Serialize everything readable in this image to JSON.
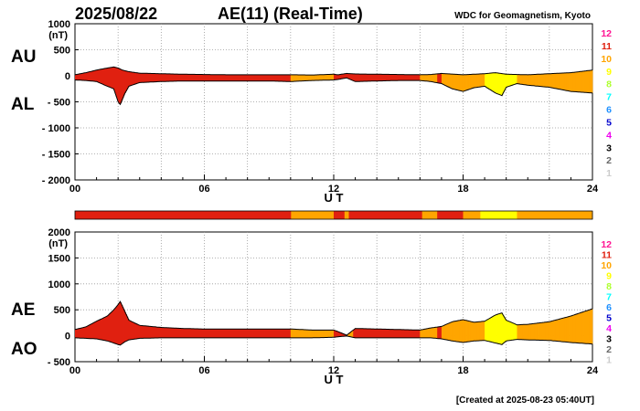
{
  "header": {
    "date": "2025/08/22",
    "title": "AE(11) (Real-Time)",
    "source": "WDC for Geomagnetism, Kyoto"
  },
  "footer": {
    "created": "[Created at 2025-08-23 05:40UT]"
  },
  "level_colors": {
    "12": "#ff1493",
    "11": "#e02010",
    "10": "#ffa500",
    "9": "#ffff00",
    "8": "#adff2f",
    "7": "#00ffff",
    "6": "#1e90ff",
    "5": "#0000cd",
    "4": "#ee00ee",
    "3": "#000000",
    "2": "#666666",
    "1": "#cccccc"
  },
  "chart_data": [
    {
      "type": "area",
      "panel": "AU/AL",
      "upper_label": "AU",
      "lower_label": "AL",
      "xlabel": "U T",
      "ylabel_unit": "(nT)",
      "xlim": [
        0,
        24
      ],
      "ylim": [
        -2000,
        1000
      ],
      "xticks": [
        "00",
        "06",
        "12",
        "18",
        "24"
      ],
      "yticks": [
        "1000",
        "500",
        "0",
        "- 500",
        "- 1000",
        "- 1500",
        "- 2000"
      ],
      "grid": true,
      "legend": "right",
      "legend_levels": [
        "12",
        "11",
        "10",
        "9",
        "8",
        "7",
        "6",
        "5",
        "4",
        "3",
        "2",
        "1"
      ],
      "series": [
        {
          "name": "AU",
          "x": [
            0,
            0.5,
            1,
            1.5,
            1.8,
            2,
            2.2,
            2.5,
            3,
            4,
            5,
            6,
            7,
            8,
            9,
            10,
            11,
            12,
            12.2,
            12.6,
            13,
            14,
            15,
            16,
            16.5,
            17,
            18,
            19,
            19.5,
            20,
            21,
            22,
            23,
            24
          ],
          "values": [
            20,
            60,
            110,
            150,
            170,
            150,
            110,
            80,
            50,
            40,
            30,
            25,
            20,
            20,
            20,
            20,
            15,
            30,
            20,
            45,
            35,
            30,
            25,
            20,
            25,
            45,
            20,
            40,
            60,
            30,
            20,
            40,
            60,
            110
          ]
        },
        {
          "name": "AL",
          "x": [
            0,
            0.5,
            1,
            1.5,
            1.8,
            2,
            2.1,
            2.3,
            2.5,
            3,
            4,
            5,
            6,
            7,
            8,
            9,
            10,
            11,
            12,
            12.2,
            12.6,
            13,
            14,
            15,
            16,
            16.5,
            17,
            17.5,
            18,
            18.5,
            19,
            19.5,
            19.8,
            20,
            20.5,
            21,
            22,
            23,
            24
          ],
          "values": [
            -80,
            -90,
            -110,
            -200,
            -250,
            -500,
            -550,
            -350,
            -200,
            -130,
            -110,
            -100,
            -100,
            -100,
            -100,
            -100,
            -110,
            -90,
            -80,
            -70,
            -40,
            -110,
            -100,
            -90,
            -90,
            -110,
            -150,
            -250,
            -300,
            -230,
            -200,
            -330,
            -380,
            -220,
            -150,
            -180,
            -220,
            -300,
            -330
          ]
        }
      ],
      "level_x": [
        0,
        10,
        10.02,
        12,
        12.03,
        16,
        16.02,
        16.8,
        17,
        18,
        18.8,
        19,
        20,
        20.5,
        24
      ],
      "level_values": [
        11,
        11,
        10,
        11,
        11,
        11,
        10,
        11,
        10,
        10,
        10,
        9,
        9,
        10,
        10
      ]
    },
    {
      "type": "area",
      "panel": "AE/AO",
      "upper_label": "AE",
      "lower_label": "AO",
      "xlabel": "U T",
      "ylabel_unit": "(nT)",
      "xlim": [
        0,
        24
      ],
      "ylim": [
        -500,
        2000
      ],
      "xticks": [
        "00",
        "06",
        "12",
        "18",
        "24"
      ],
      "yticks": [
        "2000",
        "1500",
        "1000",
        "500",
        "0",
        "- 500"
      ],
      "grid": true,
      "legend": "right",
      "legend_levels": [
        "12",
        "11",
        "10",
        "9",
        "8",
        "7",
        "6",
        "5",
        "4",
        "3",
        "2",
        "1"
      ],
      "series": [
        {
          "name": "AE",
          "x": [
            0,
            0.5,
            1,
            1.5,
            1.8,
            2,
            2.1,
            2.3,
            2.5,
            3,
            4,
            5,
            6,
            7,
            8,
            9,
            10,
            11,
            12,
            12.2,
            12.6,
            13,
            14,
            15,
            16,
            16.5,
            17,
            17.5,
            18,
            18.5,
            19,
            19.5,
            19.8,
            20,
            20.5,
            21,
            22,
            23,
            24
          ],
          "values": [
            120,
            170,
            280,
            380,
            500,
            600,
            660,
            480,
            300,
            200,
            160,
            140,
            130,
            130,
            130,
            130,
            130,
            110,
            110,
            80,
            10,
            140,
            130,
            120,
            110,
            150,
            180,
            270,
            310,
            260,
            280,
            400,
            440,
            300,
            210,
            220,
            270,
            380,
            520
          ]
        },
        {
          "name": "AO",
          "x": [
            0,
            0.5,
            1,
            1.5,
            1.8,
            2,
            2.1,
            2.3,
            2.5,
            3,
            4,
            5,
            6,
            7,
            8,
            9,
            10,
            11,
            12,
            12.2,
            12.6,
            13,
            14,
            15,
            16,
            16.5,
            17,
            17.5,
            18,
            18.5,
            19,
            19.5,
            19.8,
            20,
            20.5,
            21,
            22,
            23,
            24
          ],
          "values": [
            -40,
            -50,
            -60,
            -100,
            -140,
            -170,
            -180,
            -120,
            -80,
            -50,
            -40,
            -40,
            -40,
            -40,
            -40,
            -40,
            -40,
            -40,
            -30,
            -20,
            -5,
            -40,
            -40,
            -40,
            -40,
            -40,
            -60,
            -100,
            -130,
            -100,
            -90,
            -140,
            -170,
            -100,
            -70,
            -80,
            -90,
            -130,
            -160
          ]
        }
      ],
      "level_x": [
        0,
        10,
        10.02,
        12,
        12.03,
        12.6,
        12.9,
        16,
        16.02,
        16.8,
        17,
        18,
        18.8,
        19,
        20,
        20.5,
        24
      ],
      "level_values": [
        11,
        11,
        10,
        11,
        11,
        10,
        11,
        11,
        10,
        11,
        10,
        10,
        10,
        9,
        9,
        10,
        10
      ]
    }
  ],
  "strip": {
    "x": [
      0,
      10,
      10.02,
      12,
      12.5,
      12.7,
      16,
      16.1,
      16.8,
      18,
      18.8,
      20.5,
      24
    ],
    "levels": [
      11,
      11,
      10,
      11,
      10,
      11,
      11,
      10,
      11,
      10,
      9,
      10,
      10
    ]
  }
}
